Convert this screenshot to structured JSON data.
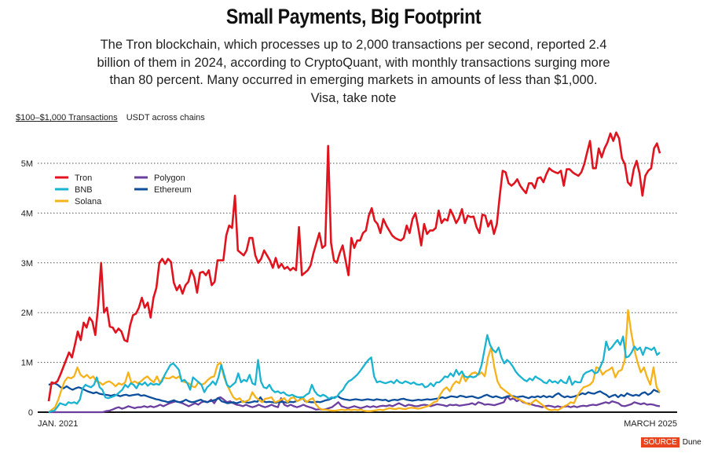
{
  "header": {
    "title": "Small Payments, Big Footprint",
    "subtitle": "The Tron blockchain, which processes up to 2,000 transactions per second, reported 2.4 billion of them in 2024, according to CryptoQuant, with monthly transactions surging more than 80 percent. Many occurred in emerging markets in amounts of less than $1,000. Visa, take note"
  },
  "chart_label": {
    "metric": "$100–$1,000 Transactions",
    "detail": "USDT across chains"
  },
  "source": {
    "badge": "SOURCE",
    "name": "Dune"
  },
  "chart_data": {
    "type": "line",
    "title": "Small Payments, Big Footprint",
    "xlabel": "",
    "ylabel": "$100–$1,000 Transactions (USDT across chains)",
    "x_start_label": "JAN. 2021",
    "x_end_label": "MARCH 2025",
    "ylim": [
      0,
      5600000
    ],
    "yticks": [
      0,
      1000000,
      2000000,
      3000000,
      4000000,
      5000000
    ],
    "ytick_labels": [
      "0",
      "1M",
      "2M",
      "3M",
      "4M",
      "5M"
    ],
    "grid": "horizontal-dotted",
    "legend": "top-left",
    "series": [
      {
        "name": "Tron",
        "color": "#e0141e",
        "values": [
          0.22,
          0.6,
          0.58,
          0.62,
          0.75,
          0.9,
          1.05,
          1.2,
          1.1,
          1.35,
          1.62,
          1.45,
          1.8,
          1.7,
          1.9,
          1.82,
          1.55,
          2.15,
          3.0,
          2.0,
          2.1,
          1.72,
          1.7,
          1.6,
          1.68,
          1.62,
          1.45,
          1.42,
          1.75,
          1.95,
          1.98,
          2.1,
          2.3,
          2.1,
          2.2,
          1.9,
          2.3,
          2.5,
          3.0,
          3.08,
          2.98,
          3.08,
          3.02,
          2.6,
          2.45,
          2.55,
          2.38,
          2.55,
          2.62,
          2.85,
          2.72,
          2.4,
          2.8,
          2.82,
          2.75,
          2.85,
          2.55,
          2.62,
          3.05,
          3.05,
          3.05,
          3.55,
          3.75,
          3.7,
          4.35,
          3.25,
          3.2,
          3.15,
          3.25,
          3.5,
          3.5,
          3.15,
          3.0,
          3.08,
          3.25,
          3.15,
          3.05,
          2.9,
          3.1,
          2.9,
          2.98,
          2.88,
          2.92,
          2.85,
          2.9,
          2.85,
          3.72,
          2.75,
          2.8,
          2.85,
          2.95,
          3.2,
          3.4,
          3.6,
          3.3,
          3.35,
          5.35,
          3.4,
          3.05,
          3.0,
          3.2,
          3.35,
          3.05,
          2.75,
          3.5,
          3.3,
          3.45,
          3.45,
          3.6,
          3.65,
          3.95,
          4.1,
          3.85,
          3.78,
          3.6,
          3.88,
          3.75,
          3.65,
          3.55,
          3.5,
          3.47,
          3.45,
          3.5,
          3.75,
          3.6,
          3.88,
          4.0,
          3.7,
          3.35,
          3.78,
          3.58,
          3.65,
          3.65,
          3.7,
          4.05,
          3.8,
          3.88,
          3.85,
          4.07,
          3.95,
          3.8,
          3.9,
          4.08,
          3.8,
          3.95,
          3.92,
          3.93,
          3.72,
          3.6,
          3.97,
          3.95,
          3.73,
          3.85,
          3.58,
          3.78,
          4.35,
          4.85,
          4.82,
          4.6,
          4.55,
          4.6,
          4.68,
          4.55,
          4.47,
          4.4,
          4.6,
          4.6,
          4.5,
          4.7,
          4.72,
          4.62,
          4.78,
          4.9,
          4.85,
          4.82,
          4.8,
          4.85,
          4.55,
          4.88,
          4.88,
          4.82,
          4.78,
          4.75,
          4.82,
          4.98,
          5.22,
          5.45,
          4.9,
          4.9,
          5.3,
          5.12,
          5.3,
          5.42,
          5.6,
          5.45,
          5.62,
          5.5,
          5.1,
          4.98,
          4.62,
          4.55,
          4.88,
          5.05,
          4.8,
          4.35,
          4.75,
          4.85,
          4.9,
          5.3,
          5.4,
          5.2
        ]
      },
      {
        "name": "BNB",
        "color": "#1ab3d1",
        "values": [
          0.0,
          0.02,
          0.03,
          0.1,
          0.18,
          0.16,
          0.14,
          0.2,
          0.18,
          0.2,
          0.17,
          0.25,
          0.48,
          0.55,
          0.52,
          0.5,
          0.55,
          0.7,
          0.5,
          0.45,
          0.3,
          0.28,
          0.3,
          0.32,
          0.35,
          0.4,
          0.45,
          0.55,
          0.5,
          0.58,
          0.55,
          0.48,
          0.58,
          0.55,
          0.6,
          0.53,
          0.58,
          0.55,
          0.57,
          0.55,
          0.62,
          0.75,
          0.85,
          0.95,
          0.98,
          0.92,
          0.85,
          0.62,
          0.65,
          0.58,
          0.45,
          0.7,
          0.65,
          0.6,
          0.55,
          0.4,
          0.5,
          0.55,
          0.62,
          0.55,
          0.7,
          0.95,
          0.75,
          0.55,
          0.5,
          0.55,
          0.6,
          0.78,
          0.6,
          0.65,
          0.62,
          0.75,
          0.58,
          0.55,
          1.05,
          0.62,
          0.5,
          0.48,
          0.55,
          0.45,
          0.4,
          0.42,
          0.38,
          0.4,
          0.35,
          0.33,
          0.35,
          0.32,
          0.3,
          0.3,
          0.3,
          0.35,
          0.38,
          0.55,
          0.42,
          0.35,
          0.32,
          0.35,
          0.32,
          0.27,
          0.3,
          0.28,
          0.32,
          0.4,
          0.45,
          0.55,
          0.62,
          0.65,
          0.7,
          0.75,
          0.82,
          0.9,
          0.98,
          1.05,
          1.1,
          0.72,
          0.6,
          0.62,
          0.6,
          0.58,
          0.6,
          0.62,
          0.58,
          0.65,
          0.6,
          0.58,
          0.62,
          0.6,
          0.57,
          0.6,
          0.56,
          0.55,
          0.57,
          0.5,
          0.52,
          0.58,
          0.52,
          0.6,
          0.6,
          0.65,
          0.72,
          0.7,
          0.78,
          0.72,
          0.85,
          0.75,
          0.82,
          0.72,
          0.7,
          0.72,
          0.7,
          0.72,
          0.78,
          0.95,
          1.25,
          1.55,
          1.35,
          1.25,
          1.2,
          1.3,
          1.1,
          0.98,
          1.05,
          1.0,
          0.92,
          0.82,
          0.75,
          0.7,
          0.65,
          0.62,
          0.68,
          0.64,
          0.72,
          0.68,
          0.65,
          0.6,
          0.58,
          0.65,
          0.6,
          0.62,
          0.58,
          0.65,
          0.6,
          0.58,
          0.72,
          0.55,
          0.62,
          0.6,
          0.6,
          0.75,
          0.8,
          0.82,
          0.85,
          0.78,
          0.8,
          0.92,
          1.05,
          1.42,
          1.25,
          1.3,
          1.38,
          1.45,
          1.35,
          1.52,
          1.1,
          1.12,
          1.2,
          1.32,
          1.25,
          1.3,
          1.15,
          1.3,
          1.28,
          1.25,
          1.3,
          1.15,
          1.2
        ]
      },
      {
        "name": "Solana",
        "color": "#f5b21b",
        "values": [
          0.0,
          0.05,
          0.1,
          0.25,
          0.45,
          0.62,
          0.7,
          0.68,
          0.72,
          0.9,
          0.75,
          0.7,
          0.75,
          0.68,
          0.72,
          0.62,
          0.6,
          0.55,
          0.6,
          0.62,
          0.58,
          0.52,
          0.58,
          0.55,
          0.6,
          0.8,
          0.58,
          0.62,
          0.58,
          0.62,
          0.68,
          0.72,
          0.65,
          0.6,
          0.72,
          0.58,
          0.7,
          0.68,
          0.68,
          0.72,
          0.68,
          0.72,
          0.62,
          0.6,
          0.58,
          0.52,
          0.5,
          0.6,
          0.55,
          0.58,
          0.65,
          0.7,
          0.72,
          0.95,
          1.0,
          0.72,
          0.55,
          0.42,
          0.3,
          0.25,
          0.28,
          0.2,
          0.22,
          0.25,
          0.4,
          0.3,
          0.25,
          0.2,
          0.27,
          0.28,
          0.3,
          0.2,
          0.22,
          0.25,
          0.28,
          0.2,
          0.28,
          0.3,
          0.22,
          0.25,
          0.28,
          0.2,
          0.25,
          0.28,
          0.15,
          0.08,
          0.05,
          0.05,
          0.04,
          0.03,
          0.03,
          0.04,
          0.05,
          0.04,
          0.05,
          0.04,
          0.05,
          0.04,
          0.05,
          0.03,
          0.02,
          0.02,
          0.03,
          0.04,
          0.05,
          0.04,
          0.06,
          0.08,
          0.07,
          0.06,
          0.08,
          0.07,
          0.06,
          0.08,
          0.09,
          0.08,
          0.07,
          0.08,
          0.1,
          0.12,
          0.15,
          0.2,
          0.22,
          0.35,
          0.45,
          0.5,
          0.42,
          0.55,
          0.62,
          0.58,
          0.75,
          0.62,
          0.72,
          0.78,
          0.8,
          0.75,
          0.8,
          0.72,
          1.1,
          1.3,
          0.9,
          0.62,
          0.5,
          0.45,
          0.4,
          0.35,
          0.3,
          0.28,
          0.25,
          0.22,
          0.18,
          0.15,
          0.2,
          0.25,
          0.2,
          0.15,
          0.1,
          0.05,
          0.04,
          0.05,
          0.04,
          0.08,
          0.12,
          0.15,
          0.2,
          0.18,
          0.32,
          0.42,
          0.5,
          0.52,
          0.55,
          0.62,
          0.9,
          0.88,
          0.75,
          0.82,
          0.85,
          0.9,
          0.7,
          0.82,
          0.85,
          1.05,
          2.05,
          1.6,
          1.25,
          1.0,
          0.8,
          0.9,
          0.7,
          0.55,
          0.9,
          0.5,
          0.4
        ]
      },
      {
        "name": "Polygon",
        "color": "#6b3fa0",
        "values": [
          0.0,
          0.0,
          0.0,
          0.0,
          0.0,
          0.0,
          0.0,
          0.0,
          0.0,
          0.0,
          0.0,
          0.0,
          0.0,
          0.0,
          0.0,
          0.0,
          0.0,
          0.0,
          0.02,
          0.03,
          0.05,
          0.08,
          0.1,
          0.07,
          0.09,
          0.12,
          0.1,
          0.08,
          0.1,
          0.1,
          0.12,
          0.1,
          0.12,
          0.1,
          0.12,
          0.15,
          0.12,
          0.15,
          0.18,
          0.2,
          0.22,
          0.2,
          0.18,
          0.15,
          0.12,
          0.15,
          0.18,
          0.15,
          0.2,
          0.22,
          0.2,
          0.25,
          0.18,
          0.28,
          0.3,
          0.25,
          0.2,
          0.22,
          0.18,
          0.15,
          0.14,
          0.12,
          0.15,
          0.12,
          0.1,
          0.12,
          0.15,
          0.12,
          0.1,
          0.12,
          0.15,
          0.12,
          0.1,
          0.28,
          0.15,
          0.12,
          0.15,
          0.12,
          0.1,
          0.12,
          0.15,
          0.12,
          0.1,
          0.08,
          0.05,
          0.06,
          0.05,
          0.06,
          0.08,
          0.1,
          0.15,
          0.2,
          0.12,
          0.1,
          0.08,
          0.1,
          0.12,
          0.1,
          0.08,
          0.1,
          0.12,
          0.1,
          0.12,
          0.1,
          0.12,
          0.13,
          0.12,
          0.14,
          0.12,
          0.15,
          0.18,
          0.15,
          0.12,
          0.15,
          0.14,
          0.12,
          0.12,
          0.14,
          0.15,
          0.14,
          0.12,
          0.14,
          0.16,
          0.15,
          0.14,
          0.12,
          0.15,
          0.14,
          0.15,
          0.13,
          0.14,
          0.15,
          0.16,
          0.18,
          0.15,
          0.2,
          0.18,
          0.15,
          0.16,
          0.15,
          0.14,
          0.16,
          0.18,
          0.2,
          0.32,
          0.25,
          0.28,
          0.22,
          0.25,
          0.2,
          0.18,
          0.17,
          0.15,
          0.13,
          0.12,
          0.1,
          0.12,
          0.13,
          0.12,
          0.1,
          0.12,
          0.1,
          0.11,
          0.12,
          0.1,
          0.12,
          0.1,
          0.12,
          0.13,
          0.12,
          0.14,
          0.15,
          0.14,
          0.16,
          0.18,
          0.2,
          0.18,
          0.22,
          0.2,
          0.18,
          0.13,
          0.12,
          0.14,
          0.16,
          0.2,
          0.18,
          0.16,
          0.18,
          0.15,
          0.16,
          0.15,
          0.13,
          0.12
        ]
      },
      {
        "name": "Ethereum",
        "color": "#0d4f9c",
        "values": [
          0.55,
          0.57,
          0.58,
          0.55,
          0.5,
          0.48,
          0.52,
          0.48,
          0.45,
          0.48,
          0.5,
          0.48,
          0.45,
          0.42,
          0.4,
          0.38,
          0.4,
          0.37,
          0.36,
          0.35,
          0.34,
          0.33,
          0.35,
          0.34,
          0.32,
          0.34,
          0.35,
          0.33,
          0.34,
          0.35,
          0.36,
          0.33,
          0.34,
          0.32,
          0.3,
          0.28,
          0.26,
          0.25,
          0.23,
          0.22,
          0.2,
          0.22,
          0.24,
          0.21,
          0.2,
          0.22,
          0.25,
          0.22,
          0.2,
          0.21,
          0.23,
          0.25,
          0.22,
          0.2,
          0.22,
          0.23,
          0.25,
          0.28,
          0.22,
          0.2,
          0.18,
          0.19,
          0.2,
          0.18,
          0.2,
          0.22,
          0.2,
          0.19,
          0.2,
          0.22,
          0.21,
          0.3,
          0.22,
          0.2,
          0.21,
          0.2,
          0.19,
          0.2,
          0.21,
          0.2,
          0.19,
          0.21,
          0.2,
          0.22,
          0.24,
          0.3,
          0.22,
          0.21,
          0.2,
          0.2,
          0.21,
          0.2,
          0.22,
          0.24,
          0.25,
          0.28,
          0.3,
          0.32,
          0.28,
          0.26,
          0.25,
          0.24,
          0.25,
          0.26,
          0.25,
          0.24,
          0.25,
          0.26,
          0.25,
          0.24,
          0.26,
          0.25,
          0.24,
          0.25,
          0.22,
          0.24,
          0.25,
          0.24,
          0.26,
          0.27,
          0.25,
          0.24,
          0.23,
          0.24,
          0.25,
          0.24,
          0.25,
          0.26,
          0.25,
          0.26,
          0.27,
          0.28,
          0.3,
          0.28,
          0.3,
          0.32,
          0.31,
          0.3,
          0.33,
          0.32,
          0.3,
          0.31,
          0.32,
          0.3,
          0.28,
          0.3,
          0.33,
          0.35,
          0.32,
          0.3,
          0.32,
          0.3,
          0.28,
          0.3,
          0.32,
          0.33,
          0.32,
          0.3,
          0.31,
          0.32,
          0.3,
          0.28,
          0.31,
          0.3,
          0.32,
          0.3,
          0.33,
          0.3,
          0.32,
          0.3,
          0.35,
          0.38,
          0.33,
          0.3,
          0.32,
          0.3,
          0.31,
          0.33,
          0.35,
          0.38,
          0.36,
          0.4,
          0.38,
          0.37,
          0.4,
          0.42,
          0.38,
          0.35,
          0.3,
          0.33,
          0.35,
          0.3,
          0.35,
          0.32,
          0.38,
          0.35,
          0.33,
          0.35,
          0.33,
          0.38,
          0.4,
          0.35,
          0.38,
          0.45,
          0.42,
          0.4
        ]
      }
    ]
  }
}
